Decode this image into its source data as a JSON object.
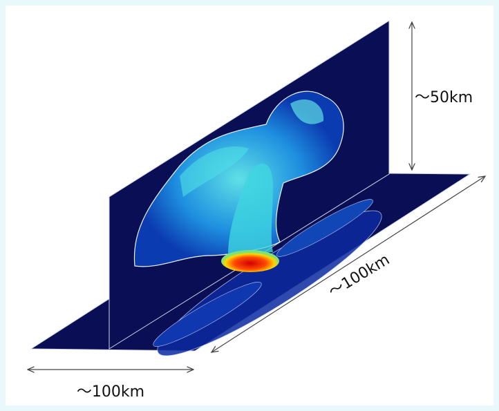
{
  "labels": {
    "height": "〜50km",
    "depth": "〜100km",
    "width": "〜100km"
  }
}
